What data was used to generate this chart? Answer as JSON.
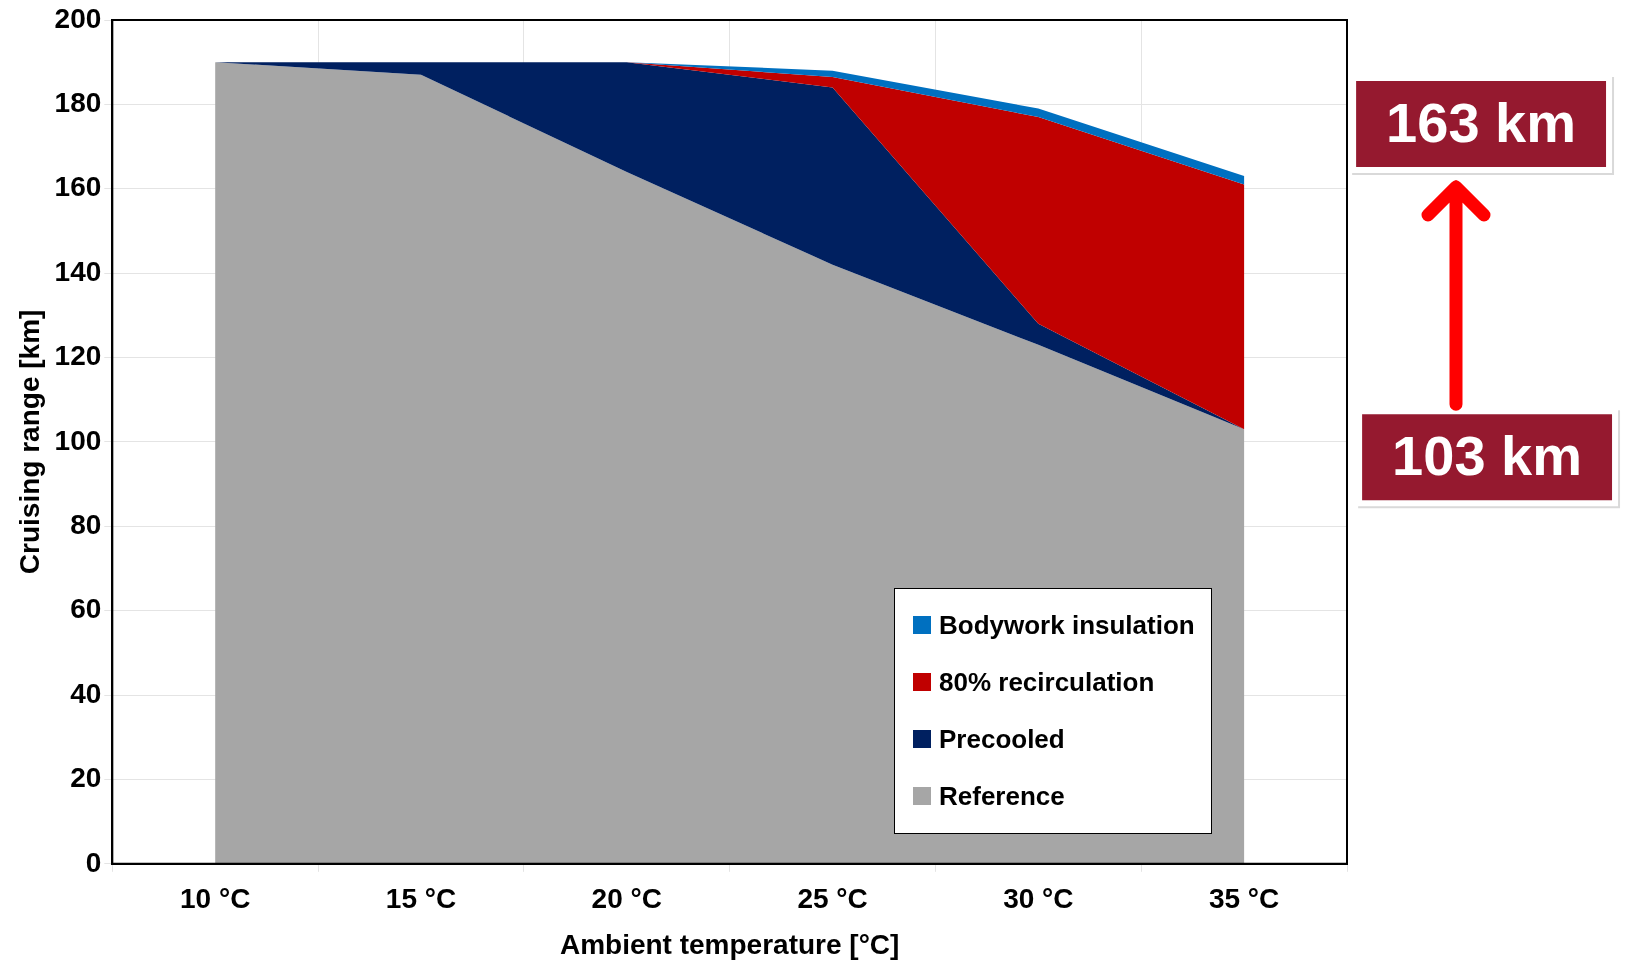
{
  "chart_data": {
    "type": "area",
    "stacked": true,
    "xlabel": "Ambient temperature [°C]",
    "ylabel": "Cruising range [km]",
    "categories": [
      "10 °C",
      "15 °C",
      "20 °C",
      "25 °C",
      "30 °C",
      "35 °C"
    ],
    "series": [
      {
        "name": "Reference",
        "color": "#a6a6a6",
        "values": [
          190,
          187,
          164,
          142,
          123,
          103
        ]
      },
      {
        "name": "Precooled",
        "color": "#002060",
        "values": [
          0,
          3,
          26,
          42,
          5,
          0
        ]
      },
      {
        "name": "80% recirculation",
        "color": "#c00000",
        "values": [
          null,
          null,
          0,
          2.5,
          49,
          58
        ]
      },
      {
        "name": "Bodywork insulation",
        "color": "#0070c0",
        "values": [
          null,
          null,
          0,
          1.5,
          2,
          2
        ]
      }
    ],
    "ylim": [
      0,
      200
    ],
    "yticks": [
      0,
      20,
      40,
      60,
      80,
      100,
      120,
      140,
      160,
      180,
      200
    ],
    "grid": true,
    "legend": "bottom right",
    "annotations": [
      {
        "text": "163 km",
        "x": "35 °C",
        "y": 163
      },
      {
        "text": "103 km",
        "x": "35 °C",
        "y": 103
      }
    ]
  }
}
